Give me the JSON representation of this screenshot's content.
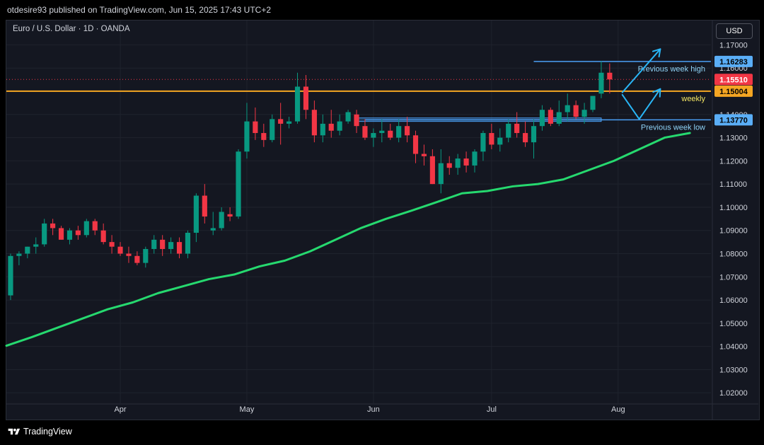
{
  "header": {
    "text": "otdesire93 published on TradingView.com, Jun 15, 2025 17:43 UTC+2"
  },
  "symbol": {
    "text": "Euro / U.S. Dollar · 1D · OANDA"
  },
  "currency_button": {
    "label": "USD"
  },
  "footer": {
    "text": "TradingView"
  },
  "colors": {
    "background": "#141721",
    "grid": "#1f232d",
    "up": "#089981",
    "down": "#f23645",
    "ma": "#26d96f",
    "level_line": "#4a9ff5",
    "weekly_line": "#f5a623",
    "arrow": "#29b6f6"
  },
  "chart_data": {
    "type": "candlestick",
    "interval": "1D",
    "y_range": [
      1.0155,
      1.1805
    ],
    "y_axis_ticks": [
      "1.17000",
      "1.16000",
      "1.15000",
      "1.14000",
      "1.13000",
      "1.12000",
      "1.11000",
      "1.10000",
      "1.09000",
      "1.08000",
      "1.07000",
      "1.06000",
      "1.05000",
      "1.04000",
      "1.03000",
      "1.02000"
    ],
    "x_axis_labels": [
      {
        "label": "Apr",
        "index": 13
      },
      {
        "label": "May",
        "index": 28
      },
      {
        "label": "Jun",
        "index": 43
      },
      {
        "label": "Jul",
        "index": 57
      },
      {
        "label": "Aug",
        "index": 72
      }
    ],
    "x_index_range": [
      -0.5,
      83.0
    ],
    "candles": [
      [
        1.062,
        1.08,
        1.06,
        1.079
      ],
      [
        1.079,
        1.081,
        1.075,
        1.08
      ],
      [
        1.08,
        1.083,
        1.078,
        1.083
      ],
      [
        1.083,
        1.087,
        1.08,
        1.084
      ],
      [
        1.084,
        1.095,
        1.083,
        1.093
      ],
      [
        1.093,
        1.095,
        1.088,
        1.091
      ],
      [
        1.091,
        1.092,
        1.086,
        1.086
      ],
      [
        1.086,
        1.091,
        1.084,
        1.09
      ],
      [
        1.09,
        1.092,
        1.086,
        1.088
      ],
      [
        1.088,
        1.095,
        1.087,
        1.094
      ],
      [
        1.094,
        1.095,
        1.088,
        1.09
      ],
      [
        1.09,
        1.093,
        1.084,
        1.085
      ],
      [
        1.085,
        1.088,
        1.08,
        1.083
      ],
      [
        1.083,
        1.085,
        1.079,
        1.08
      ],
      [
        1.08,
        1.083,
        1.076,
        1.079
      ],
      [
        1.079,
        1.081,
        1.075,
        1.076
      ],
      [
        1.076,
        1.083,
        1.074,
        1.082
      ],
      [
        1.082,
        1.088,
        1.08,
        1.086
      ],
      [
        1.086,
        1.088,
        1.079,
        1.082
      ],
      [
        1.082,
        1.087,
        1.08,
        1.085
      ],
      [
        1.085,
        1.087,
        1.078,
        1.08
      ],
      [
        1.08,
        1.09,
        1.078,
        1.089
      ],
      [
        1.089,
        1.106,
        1.085,
        1.105
      ],
      [
        1.105,
        1.11,
        1.093,
        1.096
      ],
      [
        1.09,
        1.098,
        1.088,
        1.091
      ],
      [
        1.091,
        1.1,
        1.09,
        1.098
      ],
      [
        1.097,
        1.1,
        1.094,
        1.096
      ],
      [
        1.096,
        1.125,
        1.095,
        1.124
      ],
      [
        1.124,
        1.145,
        1.121,
        1.137
      ],
      [
        1.137,
        1.143,
        1.129,
        1.132
      ],
      [
        1.132,
        1.136,
        1.126,
        1.129
      ],
      [
        1.129,
        1.14,
        1.128,
        1.138
      ],
      [
        1.138,
        1.145,
        1.127,
        1.136
      ],
      [
        1.136,
        1.139,
        1.134,
        1.137
      ],
      [
        1.137,
        1.158,
        1.136,
        1.152
      ],
      [
        1.152,
        1.157,
        1.138,
        1.142
      ],
      [
        1.142,
        1.146,
        1.128,
        1.131
      ],
      [
        1.131,
        1.14,
        1.128,
        1.136
      ],
      [
        1.136,
        1.142,
        1.13,
        1.133
      ],
      [
        1.133,
        1.14,
        1.131,
        1.137
      ],
      [
        1.137,
        1.142,
        1.136,
        1.141
      ],
      [
        1.14,
        1.142,
        1.132,
        1.135
      ],
      [
        1.135,
        1.138,
        1.129,
        1.13
      ],
      [
        1.13,
        1.134,
        1.126,
        1.132
      ],
      [
        1.132,
        1.138,
        1.128,
        1.133
      ],
      [
        1.133,
        1.136,
        1.129,
        1.13
      ],
      [
        1.13,
        1.138,
        1.128,
        1.135
      ],
      [
        1.135,
        1.139,
        1.128,
        1.131
      ],
      [
        1.131,
        1.133,
        1.119,
        1.123
      ],
      [
        1.123,
        1.127,
        1.118,
        1.122
      ],
      [
        1.122,
        1.125,
        1.11,
        1.11
      ],
      [
        1.11,
        1.125,
        1.106,
        1.119
      ],
      [
        1.119,
        1.122,
        1.114,
        1.117
      ],
      [
        1.117,
        1.123,
        1.114,
        1.121
      ],
      [
        1.121,
        1.124,
        1.115,
        1.118
      ],
      [
        1.118,
        1.125,
        1.115,
        1.124
      ],
      [
        1.124,
        1.133,
        1.12,
        1.132
      ],
      [
        1.132,
        1.136,
        1.125,
        1.127
      ],
      [
        1.127,
        1.134,
        1.124,
        1.13
      ],
      [
        1.13,
        1.138,
        1.128,
        1.136
      ],
      [
        1.136,
        1.141,
        1.13,
        1.132
      ],
      [
        1.132,
        1.137,
        1.126,
        1.128
      ],
      [
        1.128,
        1.138,
        1.121,
        1.135
      ],
      [
        1.135,
        1.144,
        1.133,
        1.142
      ],
      [
        1.142,
        1.143,
        1.135,
        1.136
      ],
      [
        1.136,
        1.146,
        1.135,
        1.141
      ],
      [
        1.141,
        1.149,
        1.137,
        1.144
      ],
      [
        1.144,
        1.146,
        1.138,
        1.139
      ],
      [
        1.139,
        1.145,
        1.136,
        1.142
      ],
      [
        1.142,
        1.148,
        1.141,
        1.148
      ],
      [
        1.149,
        1.163,
        1.147,
        1.158
      ],
      [
        1.158,
        1.162,
        1.149,
        1.1551
      ]
    ],
    "moving_average": {
      "start_index": -0.5,
      "values": [
        1.0403,
        1.044,
        1.048,
        1.052,
        1.056,
        1.059,
        1.063,
        1.066,
        1.069,
        1.071,
        1.0745,
        1.077,
        1.081,
        1.086,
        1.091,
        1.095,
        1.0985,
        1.1022,
        1.106,
        1.107,
        1.109,
        1.11,
        1.112,
        1.116,
        1.12,
        1.125,
        1.13,
        1.132
      ]
    },
    "horizontal_levels": [
      {
        "name": "previous-week-high",
        "label": "Previous week high",
        "price": 1.16283,
        "tag": "1.16283",
        "start_index": 62,
        "end_index": 83
      },
      {
        "name": "weekly",
        "label": "weekly",
        "price": 1.15004,
        "tag": "1.15004",
        "start_index": -0.5,
        "end_index": 83
      },
      {
        "name": "previous-week-low",
        "label": "Previous week low",
        "price": 1.1377,
        "tag": "1.13770",
        "start_index": 42,
        "end_index": 83
      }
    ],
    "support_zone": {
      "price_top": 1.1385,
      "price_bottom": 1.137,
      "start_index": 41,
      "end_index": 70
    },
    "current_price": {
      "price": 1.1551,
      "tag": "1.15510"
    },
    "projection_arrows": [
      {
        "from": [
          72.5,
          1.1495
        ],
        "to": [
          77,
          1.1682
        ]
      },
      {
        "from": [
          72.5,
          1.1485
        ],
        "to": [
          74.5,
          1.138
        ],
        "then": [
          77,
          1.151
        ]
      }
    ]
  }
}
